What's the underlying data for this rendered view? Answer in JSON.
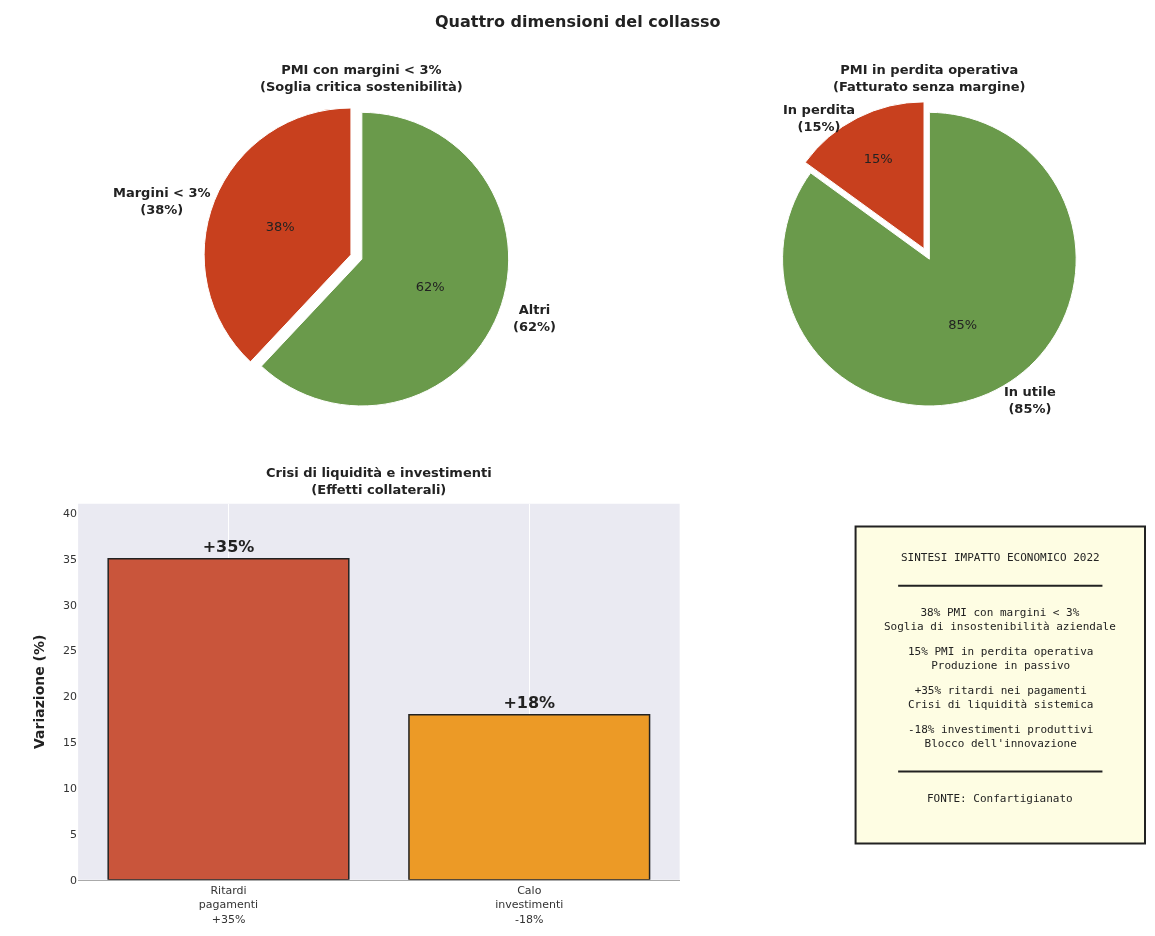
{
  "chart_data": [
    {
      "type": "pie",
      "title": "PMI con margini < 3%\n(Soglia critica sostenibilità)",
      "annotations": [
        "Quattro dimensioni del collasso"
      ],
      "categories": [
        "Margini < 3%\n(38%)",
        "Altri\n(62%)"
      ],
      "values": [
        38,
        62
      ],
      "value_labels": [
        "38%",
        "62%"
      ],
      "colors": [
        "#c8401e",
        "#6a9a4b"
      ]
    },
    {
      "type": "pie",
      "title": "PMI in perdita operativa\n(Fatturato senza margine)",
      "categories": [
        "In perdita\n(15%)",
        "In utile\n(85%)"
      ],
      "values": [
        15,
        85
      ],
      "value_labels": [
        "15%",
        "85%"
      ],
      "colors": [
        "#c8401e",
        "#6a9a4b"
      ]
    },
    {
      "type": "bar",
      "title": "Crisi di liquidità e investimenti\n(Effetti collaterali)",
      "ylabel": "Variazione (%)",
      "categories": [
        "Ritardi\npagamenti\n+35%",
        "Calo\ninvestimenti\n-18%"
      ],
      "values": [
        35,
        18
      ],
      "value_labels": [
        "+35%",
        "+18%"
      ],
      "colors": [
        "#c9553b",
        "#ec9a26"
      ],
      "ylim": [
        0,
        41
      ],
      "yticks": [
        0,
        5,
        10,
        15,
        20,
        25,
        30,
        35,
        40
      ],
      "grid": "x"
    },
    {
      "type": "other",
      "title": "SINTESI IMPATTO ECONOMICO 2022",
      "annotations": [
        "38% PMI con margini < 3%\nSoglia di insostenibilità aziendale",
        "15% PMI in perdita operativa\nProduzione in passivo",
        "+35% ritardi nei pagamenti\nCrisi di liquidità sistemica",
        "-18% investimenti produttivi\nBlocco dell'innovazione",
        "FONTE: Confartigianato"
      ]
    }
  ]
}
